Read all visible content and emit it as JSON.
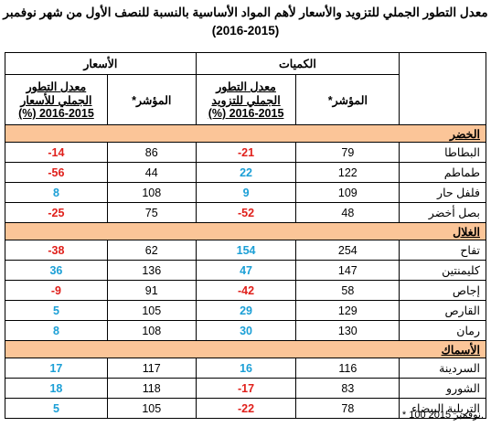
{
  "title": "معدل التطور الجملي للتزويد والأسعار لأهم المواد الأساسية بالنسبة للنصف الأول من شهر نوفمبر",
  "subtitle": "(2016-2015)",
  "header": {
    "quantities": "الكميات",
    "prices": "الأسعار",
    "qty_index": "المؤشر*",
    "qty_rate": "معدل التطور الجملي للتزويد 2015-2016 (%)",
    "price_index": "المؤشر*",
    "price_rate": "معدل التطور الجملي للأسعار 2015-2016 (%)"
  },
  "negative_color": "#e0201b",
  "positive_color": "#1b9fd6",
  "section_color": "#fbc598",
  "sections": [
    {
      "title": "الخضر",
      "rows": [
        {
          "name": "البطاطا",
          "qty_index": 79,
          "qty_rate": -21,
          "price_index": 86,
          "price_rate": -14
        },
        {
          "name": "طماطم",
          "qty_index": 122,
          "qty_rate": 22,
          "price_index": 44,
          "price_rate": -56
        },
        {
          "name": "فلفل حار",
          "qty_index": 109,
          "qty_rate": 9,
          "price_index": 108,
          "price_rate": 8
        },
        {
          "name": "بصل أخضر",
          "qty_index": 48,
          "qty_rate": -52,
          "price_index": 75,
          "price_rate": -25
        }
      ]
    },
    {
      "title": "الغلال",
      "rows": [
        {
          "name": "تفاح",
          "qty_index": 254,
          "qty_rate": 154,
          "price_index": 62,
          "price_rate": -38
        },
        {
          "name": "كليمنتين",
          "qty_index": 147,
          "qty_rate": 47,
          "price_index": 136,
          "price_rate": 36
        },
        {
          "name": "إجاص",
          "qty_index": 58,
          "qty_rate": -42,
          "price_index": 91,
          "price_rate": -9
        },
        {
          "name": "القارص",
          "qty_index": 129,
          "qty_rate": 29,
          "price_index": 105,
          "price_rate": 5
        },
        {
          "name": "رمان",
          "qty_index": 130,
          "qty_rate": 30,
          "price_index": 108,
          "price_rate": 8
        }
      ]
    },
    {
      "title": "الأسماك",
      "rows": [
        {
          "name": "السردينة",
          "qty_index": 116,
          "qty_rate": 16,
          "price_index": 117,
          "price_rate": 17
        },
        {
          "name": "الشورو",
          "qty_index": 83,
          "qty_rate": -17,
          "price_index": 118,
          "price_rate": 18
        },
        {
          "name": "التريلية البيضاء",
          "qty_index": 78,
          "qty_rate": -22,
          "price_index": 105,
          "price_rate": 5
        }
      ]
    }
  ],
  "footnote": "* 100 نوفمبر 2015."
}
